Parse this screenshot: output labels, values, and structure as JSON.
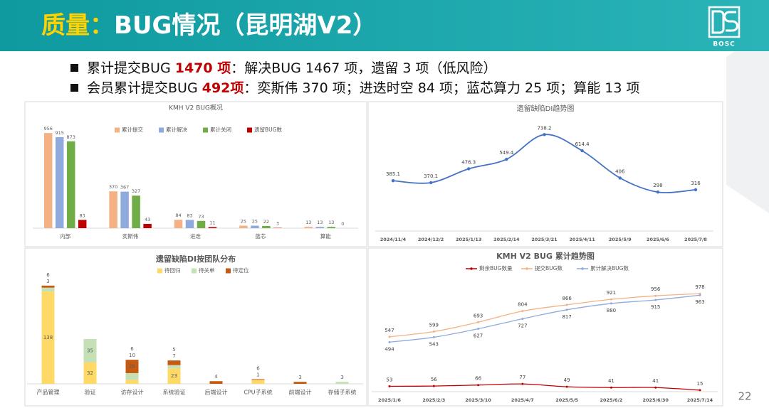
{
  "header": {
    "title_prefix": "质量：",
    "title": "BUG情况（昆明湖V2）",
    "logo": "BOSC"
  },
  "bullets": [
    {
      "lead": "累计提交BUG ",
      "highlight": "1470 项",
      "rest": "：解决BUG 1467 项，遗留 3 项（低风险）"
    },
    {
      "lead": "会员累计提交BUG ",
      "highlight": "492项",
      "rest": "：奕斯伟 370 项；进迭时空 84 项；蓝芯算力 25 项；算能 13 项"
    }
  ],
  "page_number": "22",
  "chart_data": [
    {
      "type": "bar",
      "title": "KMH V2 BUG概况",
      "categories": [
        "内部",
        "奕斯伟",
        "进迭",
        "蓝芯",
        "算能"
      ],
      "series": [
        {
          "name": "累计提交",
          "color": "#f4b183",
          "values": [
            956,
            370,
            84,
            25,
            13
          ]
        },
        {
          "name": "累计解决",
          "color": "#8faadc",
          "values": [
            915,
            367,
            83,
            25,
            13
          ]
        },
        {
          "name": "累计关闭",
          "color": "#70ad47",
          "values": [
            873,
            327,
            73,
            22,
            13
          ]
        },
        {
          "name": "遗留BUG数",
          "color": "#c00000",
          "values": [
            83,
            43,
            11,
            3,
            0
          ]
        }
      ],
      "ylim": [
        0,
        1000
      ],
      "legend": "top"
    },
    {
      "type": "line",
      "title": "遗留缺陷DI趋势图",
      "categories": [
        "2024/11/4",
        "2024/12/2",
        "2025/1/13",
        "2025/2/14",
        "2025/3/21",
        "2025/4/11",
        "2025/5/9",
        "2025/6/6",
        "2025/7/8"
      ],
      "values": [
        385.1,
        370.1,
        476.3,
        549.4,
        738.2,
        614.4,
        406,
        298,
        316
      ],
      "color": "#4472c4",
      "ylim": [
        0,
        800
      ]
    },
    {
      "type": "stacked_bar",
      "title": "遗留缺陷DI按团队分布",
      "categories": [
        "产品管理",
        "验证",
        "访存设计",
        "系统验证",
        "后端设计",
        "CPU子系统",
        "前端设计",
        "存储子系统"
      ],
      "series": [
        {
          "name": "待回归",
          "color": "#ffd966",
          "values": [
            138,
            32,
            6,
            23,
            null,
            6,
            null,
            null
          ]
        },
        {
          "name": "待关单",
          "color": "#c5e0b4",
          "values": [
            6,
            35,
            10,
            5,
            null,
            null,
            null,
            3
          ]
        },
        {
          "name": "待定位",
          "color": "#c55a11",
          "values": [
            3,
            null,
            20,
            7,
            4,
            1,
            3,
            null
          ]
        }
      ],
      "ylim": [
        0,
        150
      ],
      "legend": "top"
    },
    {
      "type": "line",
      "title": "KMH V2 BUG 累计趋势图",
      "categories": [
        "2025/1/6",
        "2025/2/3",
        "2025/3/10",
        "2025/4/7",
        "2025/5/5",
        "2025/6/2",
        "2025/6/30",
        "2025/7/14"
      ],
      "series": [
        {
          "name": "剩余BUG数量",
          "color": "#c00000",
          "values": [
            53,
            56,
            66,
            77,
            49,
            41,
            41,
            15
          ]
        },
        {
          "name": "提交BUG数",
          "color": "#f4b183",
          "values": [
            547,
            599,
            693,
            804,
            866,
            921,
            956,
            978
          ]
        },
        {
          "name": "累计解决BUG数",
          "color": "#8faadc",
          "values": [
            494,
            543,
            627,
            727,
            817,
            880,
            915,
            963
          ]
        }
      ],
      "ylim": [
        0,
        1000
      ],
      "legend": "top"
    }
  ]
}
